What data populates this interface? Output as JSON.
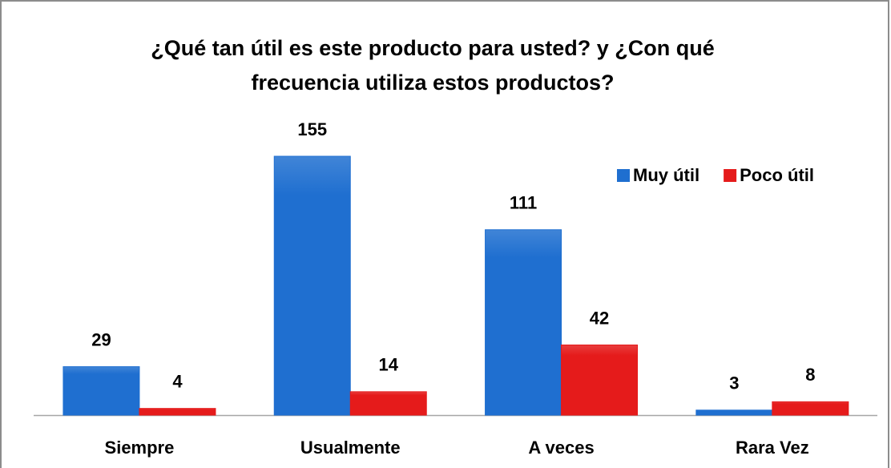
{
  "chart_data": {
    "type": "bar",
    "title": [
      "¿Qué tan útil es este producto para usted? y ¿Con qué",
      "frecuencia utiliza estos productos?"
    ],
    "categories": [
      "Siempre",
      "Usualmente",
      "A veces",
      "Rara Vez"
    ],
    "series": [
      {
        "name": "Muy útil",
        "color": "#1f6fd0",
        "values": [
          29,
          155,
          111,
          3
        ]
      },
      {
        "name": "Poco útil",
        "color": "#e51b1b",
        "values": [
          4,
          14,
          42,
          8
        ]
      }
    ],
    "legend": "top-right"
  }
}
